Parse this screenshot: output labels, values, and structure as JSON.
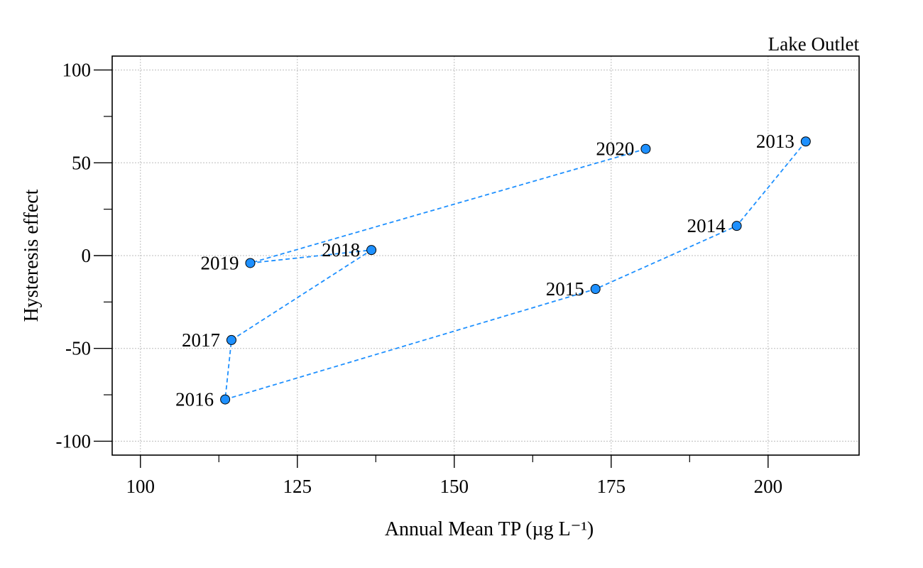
{
  "chart_data": {
    "type": "scatter",
    "title": "Lake Outlet",
    "xlabel": "Annual Mean TP (µg L⁻¹)",
    "ylabel": "Hysteresis effect",
    "xlim": [
      95.5,
      214.5
    ],
    "ylim": [
      -107.5,
      107.5
    ],
    "xticks": [
      100,
      125,
      150,
      175,
      200
    ],
    "xticks_minor": [
      112.5,
      137.5,
      162.5,
      187.5
    ],
    "yticks": [
      -100,
      -50,
      0,
      50,
      100
    ],
    "yticks_minor": [
      -75,
      -25,
      25,
      75
    ],
    "x_tick_labels": [
      "100",
      "125",
      "150",
      "175",
      "200"
    ],
    "y_tick_labels": [
      "-100",
      "-50",
      "0",
      "50",
      "100"
    ],
    "grid": true,
    "legend": "none",
    "colors": {
      "point": "#1e90ff",
      "line": "#1e90ff",
      "grid": "#bdbdbd"
    },
    "series": [
      {
        "connected_by": "dashed-line",
        "points": [
          {
            "label": "2013",
            "x": 206.0,
            "y": 61.5
          },
          {
            "label": "2014",
            "x": 195.0,
            "y": 16.0
          },
          {
            "label": "2015",
            "x": 172.5,
            "y": -18.0
          },
          {
            "label": "2016",
            "x": 113.5,
            "y": -77.5
          },
          {
            "label": "2017",
            "x": 114.5,
            "y": -45.5
          },
          {
            "label": "2018",
            "x": 136.8,
            "y": 3.0
          },
          {
            "label": "2019",
            "x": 117.5,
            "y": -4.0
          },
          {
            "label": "2020",
            "x": 180.5,
            "y": 57.5
          }
        ]
      }
    ]
  }
}
